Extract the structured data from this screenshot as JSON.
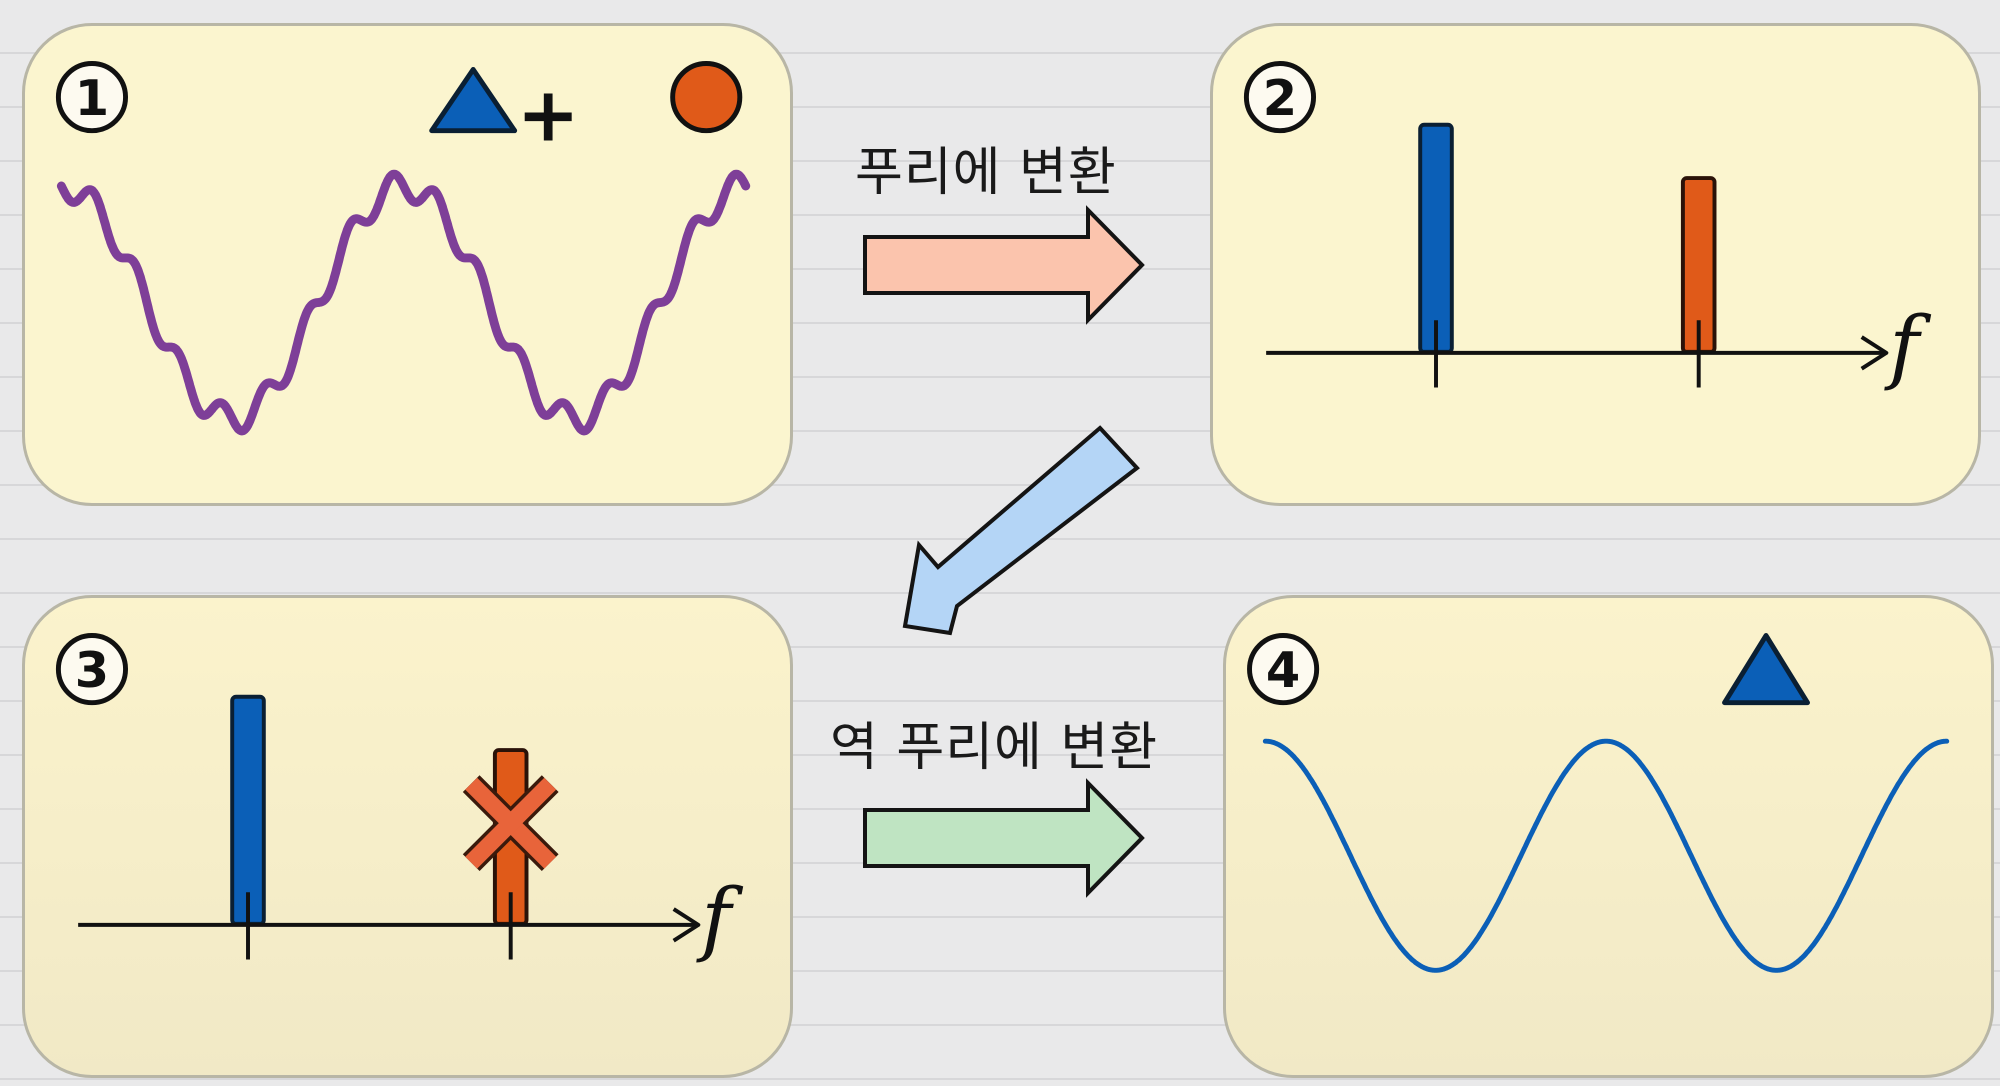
{
  "panels": [
    {
      "number": "1"
    },
    {
      "number": "2"
    },
    {
      "number": "3"
    },
    {
      "number": "4"
    }
  ],
  "symbols": {
    "plus": "+"
  },
  "axis": {
    "label": "f"
  },
  "captions": {
    "forward": "푸리에 변환",
    "inverse": "역 푸리에 변환"
  },
  "colors": {
    "panel_fill": "#fbf5cf",
    "combined_wave": "#7e3f98",
    "blue": "#0b5fb7",
    "orange": "#e05a19",
    "cross_fill": "#e8643a",
    "arrow_forward": "#fbc4ad",
    "arrow_diag": "#b4d5f6",
    "arrow_inverse": "#bfe4c2"
  },
  "icons": [
    "triangle-icon",
    "circle-icon",
    "cross-icon",
    "arrow-right-icon",
    "arrow-down-left-icon"
  ],
  "spectra": {
    "input": [
      {
        "component": "triangle",
        "relative_frequency": 1,
        "relative_amplitude": 1.0
      },
      {
        "component": "circle",
        "relative_frequency": 1.8,
        "relative_amplitude": 0.7
      }
    ],
    "filtered": [
      {
        "component": "triangle",
        "kept": true
      },
      {
        "component": "circle",
        "kept": false
      }
    ]
  }
}
